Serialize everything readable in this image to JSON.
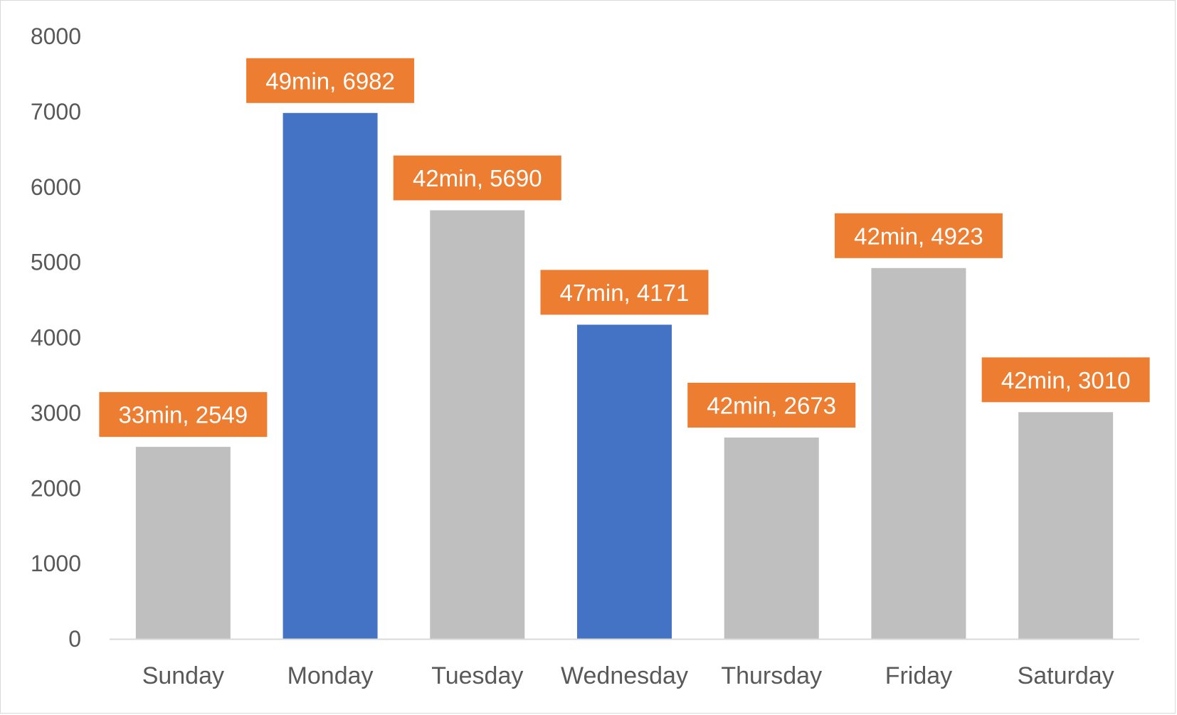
{
  "chart_data": {
    "type": "bar",
    "title": "",
    "xlabel": "",
    "ylabel": "",
    "categories": [
      "Sunday",
      "Monday",
      "Tuesday",
      "Wednesday",
      "Thursday",
      "Friday",
      "Saturday"
    ],
    "values": [
      2549,
      6982,
      5690,
      4171,
      2673,
      4923,
      3010
    ],
    "data_labels": [
      "33min, 2549",
      "49min, 6982",
      "42min, 5690",
      "47min, 4171",
      "42min, 2673",
      "42min, 4923",
      "42min, 3010"
    ],
    "highlighted": [
      false,
      true,
      false,
      true,
      false,
      false,
      false
    ],
    "ylim": [
      0,
      8000
    ],
    "yticks": [
      "0",
      "1000",
      "2000",
      "3000",
      "4000",
      "5000",
      "6000",
      "7000",
      "8000"
    ],
    "grid": false,
    "legend": "none",
    "colors": {
      "bar_default": "#bfbfbf",
      "bar_highlight": "#4472c4",
      "label_background": "#ed7d31",
      "label_text": "#ffffff",
      "axis_line": "#d9d9d9",
      "tick_text": "#595959"
    }
  }
}
